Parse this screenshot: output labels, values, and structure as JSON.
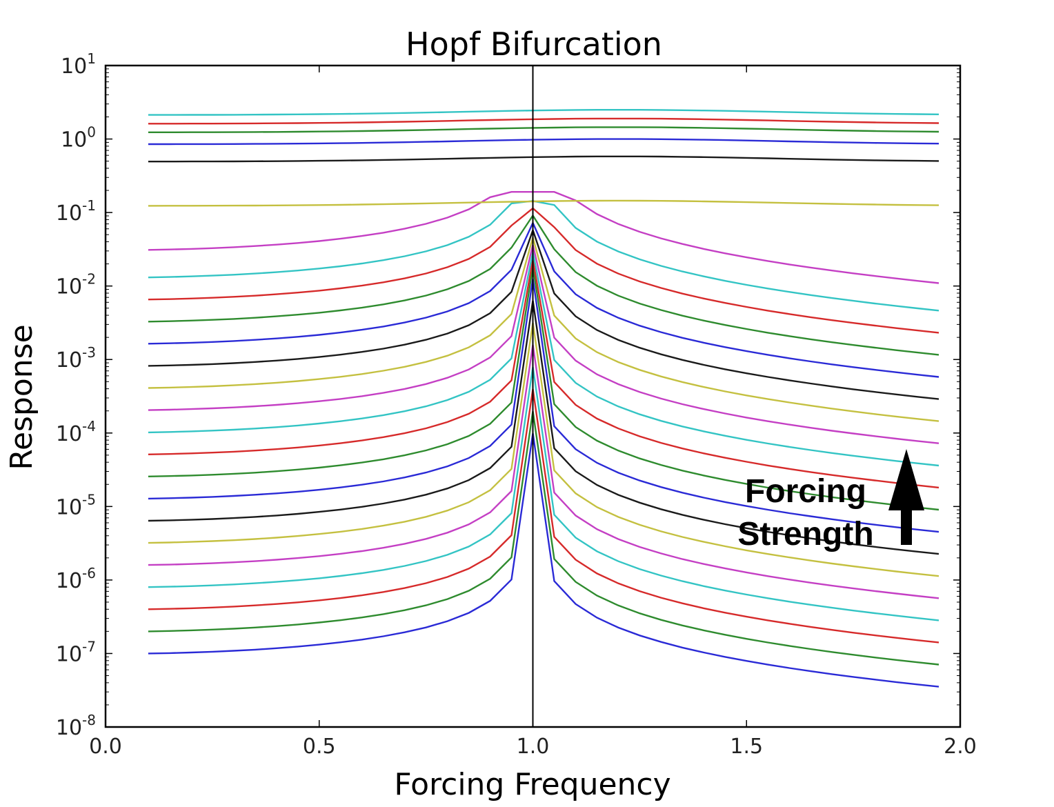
{
  "chart_data": {
    "type": "line",
    "title": "Hopf Bifurcation",
    "xlabel": "Forcing Frequency",
    "ylabel": "Response",
    "xlim": [
      0.0,
      2.0
    ],
    "ylim": [
      1e-08,
      10
    ],
    "yscale": "log",
    "grid": false,
    "x_ticks": [
      "0.0",
      "0.5",
      "1.0",
      "1.5",
      "2.0"
    ],
    "y_ticks": [
      {
        "base": "10",
        "exp": "1"
      },
      {
        "base": "10",
        "exp": "0"
      },
      {
        "base": "10",
        "exp": "-1"
      },
      {
        "base": "10",
        "exp": "-2"
      },
      {
        "base": "10",
        "exp": "-3"
      },
      {
        "base": "10",
        "exp": "-4"
      },
      {
        "base": "10",
        "exp": "-5"
      },
      {
        "base": "10",
        "exp": "-6"
      },
      {
        "base": "10",
        "exp": "-7"
      },
      {
        "base": "10",
        "exp": "-8"
      }
    ],
    "x": [
      0.1,
      0.15,
      0.2,
      0.25,
      0.3,
      0.35,
      0.4,
      0.45,
      0.5,
      0.55,
      0.6,
      0.65,
      0.7,
      0.75,
      0.8,
      0.85,
      0.9,
      0.95,
      1.0,
      1.05,
      1.1,
      1.15,
      1.2,
      1.25,
      1.3,
      1.35,
      1.4,
      1.45,
      1.5,
      1.55,
      1.6,
      1.65,
      1.7,
      1.75,
      1.8,
      1.85,
      1.9,
      1.95
    ],
    "vertical_line": 1.0,
    "series_colors": [
      "#2a2ad6",
      "#2e8b2e",
      "#d62a2a",
      "#33c4c4",
      "#c43fc4",
      "#c4c040",
      "#1a1a1a"
    ],
    "series_left_end": [
      1e-07,
      2e-07,
      4e-07,
      8e-07,
      1.6e-06,
      3.2e-06,
      6.4e-06,
      1.28e-05,
      2.56e-05,
      5.12e-05,
      0.000102,
      0.000205,
      0.00041,
      0.00082,
      0.00164,
      0.00328,
      0.00655,
      0.0131,
      0.031,
      0.145,
      0.58,
      1.0,
      1.45,
      1.9,
      2.5
    ],
    "annotation": {
      "line1": "Forcing",
      "line2": "Strength"
    }
  }
}
